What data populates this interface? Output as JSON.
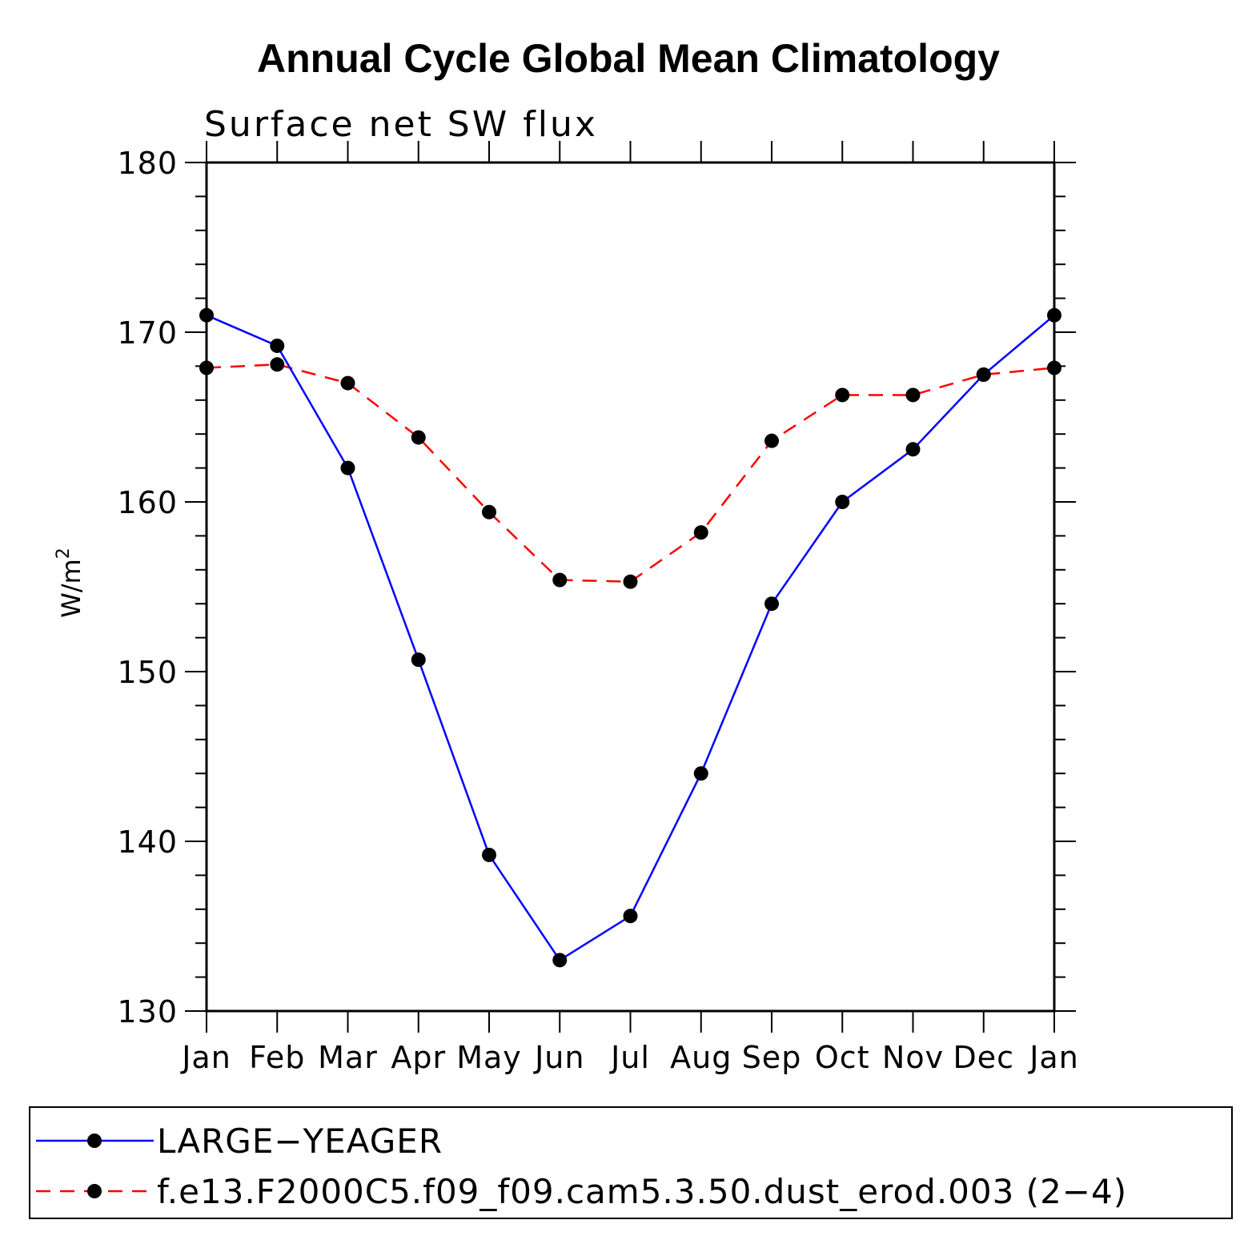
{
  "chart_data": {
    "type": "line",
    "title": "Annual Cycle Global Mean Climatology",
    "subtitle": "Surface net SW flux",
    "ylabel": "W/m",
    "ylabel_sup": "2",
    "xlabel": "",
    "categories": [
      "Jan",
      "Feb",
      "Mar",
      "Apr",
      "May",
      "Jun",
      "Jul",
      "Aug",
      "Sep",
      "Oct",
      "Nov",
      "Dec",
      "Jan"
    ],
    "ylim": [
      130,
      180
    ],
    "yticks": [
      130,
      140,
      150,
      160,
      170,
      180
    ],
    "grid": false,
    "legend_position": "bottom",
    "series": [
      {
        "name": "LARGE−YEAGER",
        "color": "#0000ff",
        "style": "solid",
        "values": [
          171.0,
          169.2,
          162.0,
          150.7,
          139.2,
          133.0,
          135.6,
          144.0,
          154.0,
          160.0,
          163.1,
          167.5,
          171.0
        ]
      },
      {
        "name": "f.e13.F2000C5.f09_f09.cam5.3.50.dust_erod.003 (2−4)",
        "color": "#ff0000",
        "style": "dashed",
        "values": [
          167.9,
          168.1,
          167.0,
          163.8,
          159.4,
          155.4,
          155.3,
          158.2,
          163.6,
          166.3,
          166.3,
          167.5,
          167.9
        ]
      }
    ]
  }
}
